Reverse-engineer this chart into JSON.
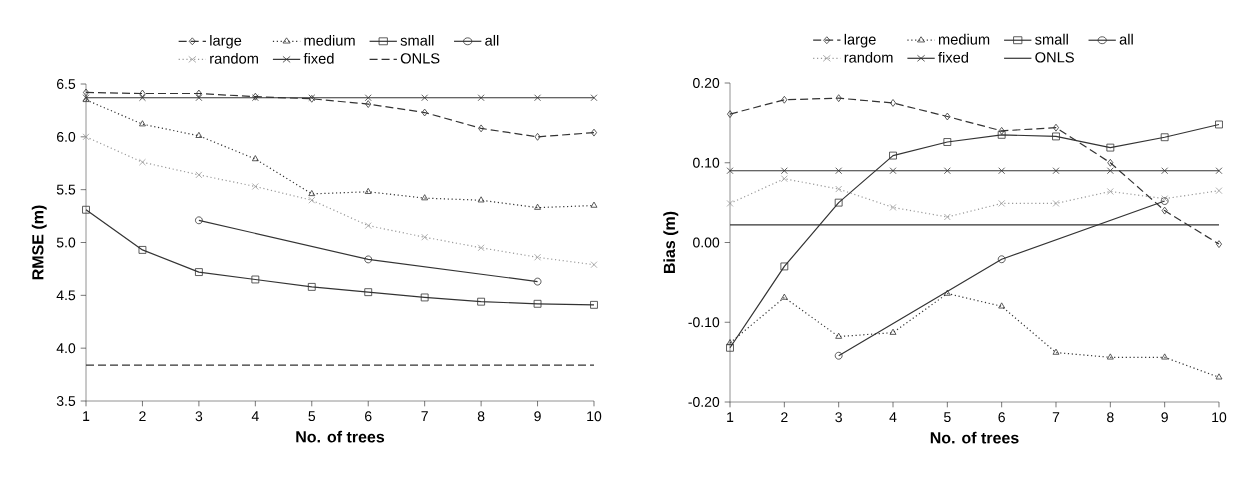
{
  "chart_data": [
    {
      "type": "line",
      "xlabel": "No. of trees",
      "ylabel": "RMSE (m)",
      "x": [
        1,
        2,
        3,
        4,
        5,
        6,
        7,
        8,
        9,
        10
      ],
      "xlim": [
        1,
        10
      ],
      "xticks": [
        1,
        2,
        3,
        4,
        5,
        6,
        7,
        8,
        9,
        10
      ],
      "ylim": [
        3.5,
        6.5
      ],
      "yticks": [
        {
          "value": 3.5,
          "label": "3.5"
        },
        {
          "value": 4.0,
          "label": "4.0"
        },
        {
          "value": 4.5,
          "label": "4.5"
        },
        {
          "value": 5.0,
          "label": "5.0"
        },
        {
          "value": 5.5,
          "label": "5.5"
        },
        {
          "value": 6.0,
          "label": "6.0"
        },
        {
          "value": 6.5,
          "label": "6.5"
        }
      ],
      "legend": "top",
      "grid": false,
      "series": [
        {
          "name": "large",
          "color": "#333333",
          "marker": "diamond",
          "line_style": "dashed",
          "values": [
            6.42,
            6.41,
            6.41,
            6.38,
            6.36,
            6.31,
            6.23,
            6.08,
            6.0,
            6.04
          ]
        },
        {
          "name": "medium",
          "color": "#333333",
          "marker": "triangle",
          "line_style": "dotted",
          "values": [
            6.35,
            6.12,
            6.01,
            5.79,
            5.46,
            5.48,
            5.42,
            5.4,
            5.33,
            5.35
          ]
        },
        {
          "name": "small",
          "color": "#333333",
          "marker": "square",
          "line_style": "solid",
          "values": [
            5.31,
            4.93,
            4.72,
            4.65,
            4.58,
            4.53,
            4.48,
            4.44,
            4.42,
            4.41
          ]
        },
        {
          "name": "all",
          "color": "#333333",
          "marker": "circle",
          "line_style": "solid",
          "x": [
            3,
            6,
            9
          ],
          "values": [
            5.21,
            4.84,
            4.63
          ]
        },
        {
          "name": "random",
          "color": "#999999",
          "marker": "cross",
          "line_style": "dotted",
          "values": [
            6.0,
            5.76,
            5.64,
            5.53,
            5.4,
            5.16,
            5.05,
            4.95,
            4.86,
            4.79
          ]
        },
        {
          "name": "fixed",
          "color": "#333333",
          "marker": "cross",
          "line_style": "solid",
          "values": [
            6.37,
            6.37,
            6.37,
            6.37,
            6.37,
            6.37,
            6.37,
            6.37,
            6.37,
            6.37
          ]
        },
        {
          "name": "ONLS",
          "color": "#333333",
          "marker": "none",
          "line_style": "dashed",
          "values": [
            3.84,
            3.84,
            3.84,
            3.84,
            3.84,
            3.84,
            3.84,
            3.84,
            3.84,
            3.84
          ]
        }
      ]
    },
    {
      "type": "line",
      "xlabel": "No. of trees",
      "ylabel": "Bias (m)",
      "x": [
        1,
        2,
        3,
        4,
        5,
        6,
        7,
        8,
        9,
        10
      ],
      "xlim": [
        1,
        10
      ],
      "xticks": [
        1,
        2,
        3,
        4,
        5,
        6,
        7,
        8,
        9,
        10
      ],
      "ylim": [
        -0.2,
        0.2
      ],
      "yticks": [
        {
          "value": -0.2,
          "label": "-0.20"
        },
        {
          "value": -0.1,
          "label": "-0.10"
        },
        {
          "value": 0,
          "label": "0.00"
        },
        {
          "value": 0.1,
          "label": "0.10"
        },
        {
          "value": 0.2,
          "label": "0.20"
        }
      ],
      "legend": "top",
      "grid": false,
      "series": [
        {
          "name": "large",
          "color": "#333333",
          "marker": "diamond",
          "line_style": "dashed",
          "values": [
            0.161,
            0.179,
            0.181,
            0.175,
            0.158,
            0.14,
            0.144,
            0.1,
            0.04,
            -0.002
          ]
        },
        {
          "name": "medium",
          "color": "#333333",
          "marker": "triangle",
          "line_style": "dotted",
          "values": [
            -0.126,
            -0.069,
            -0.118,
            -0.113,
            -0.064,
            -0.08,
            -0.138,
            -0.144,
            -0.144,
            -0.169
          ]
        },
        {
          "name": "small",
          "color": "#333333",
          "marker": "square",
          "line_style": "solid",
          "values": [
            -0.132,
            -0.03,
            0.05,
            0.109,
            0.126,
            0.135,
            0.133,
            0.119,
            0.132,
            0.148
          ]
        },
        {
          "name": "all",
          "color": "#333333",
          "marker": "circle",
          "line_style": "solid",
          "x": [
            3,
            6,
            9
          ],
          "values": [
            -0.142,
            -0.021,
            0.052
          ]
        },
        {
          "name": "random",
          "color": "#999999",
          "marker": "cross",
          "line_style": "dotted",
          "values": [
            0.049,
            0.08,
            0.067,
            0.044,
            0.032,
            0.049,
            0.049,
            0.064,
            0.055,
            0.065
          ]
        },
        {
          "name": "fixed",
          "color": "#333333",
          "marker": "cross",
          "line_style": "solid",
          "values": [
            0.09,
            0.09,
            0.09,
            0.09,
            0.09,
            0.09,
            0.09,
            0.09,
            0.09,
            0.09
          ]
        },
        {
          "name": "ONLS",
          "color": "#333333",
          "marker": "none",
          "line_style": "solid",
          "values": [
            0.022,
            0.022,
            0.022,
            0.022,
            0.022,
            0.022,
            0.022,
            0.022,
            0.022,
            0.022
          ]
        }
      ]
    }
  ]
}
